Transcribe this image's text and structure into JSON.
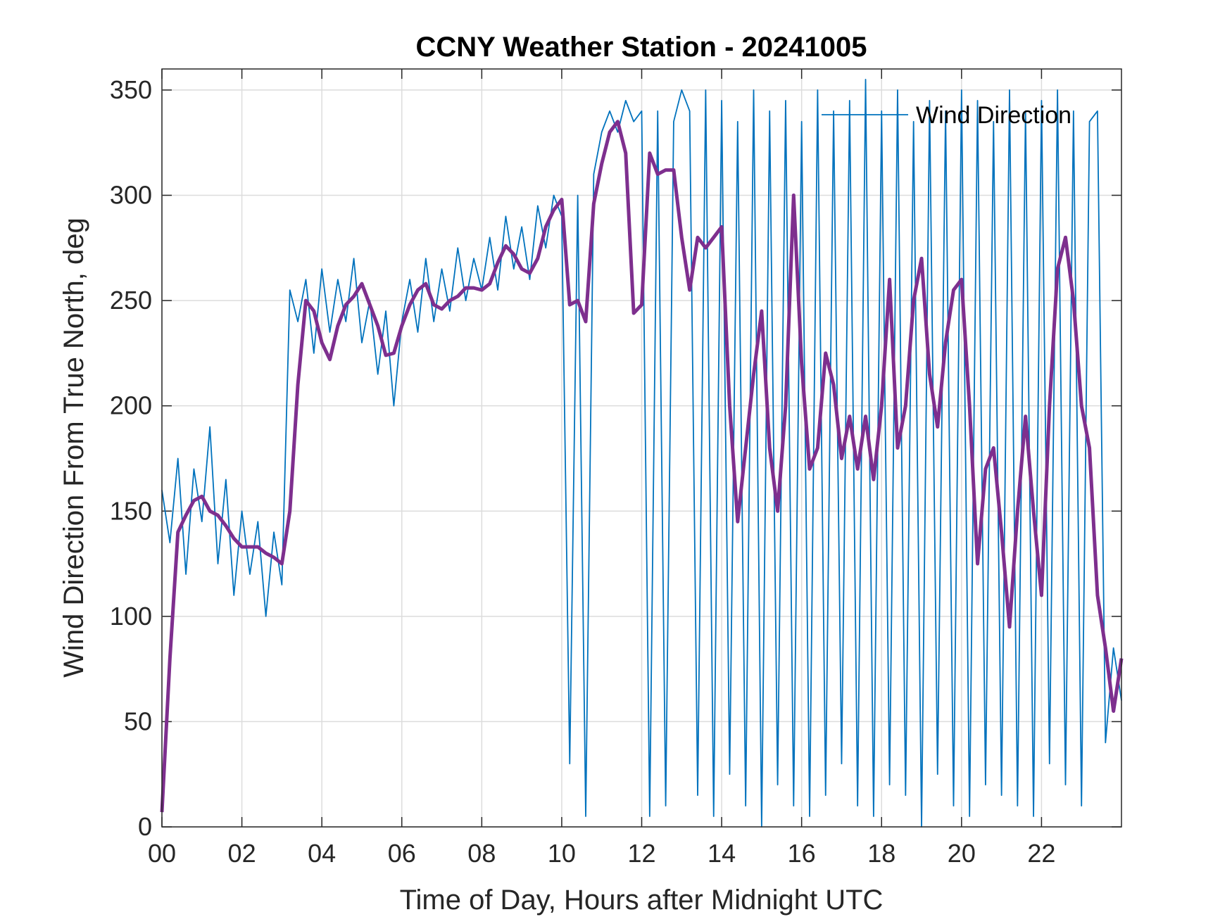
{
  "chart_data": {
    "type": "line",
    "title": "CCNY Weather Station - 20241005",
    "xlabel": "Time of Day, Hours after Midnight UTC",
    "ylabel": "Wind Direction From True North, deg",
    "x": [
      0,
      0.2,
      0.4,
      0.6,
      0.8,
      1,
      1.2,
      1.4,
      1.6,
      1.8,
      2,
      2.2,
      2.4,
      2.6,
      2.8,
      3,
      3.2,
      3.4,
      3.6,
      3.8,
      4,
      4.2,
      4.4,
      4.6,
      4.8,
      5,
      5.2,
      5.4,
      5.6,
      5.8,
      6,
      6.2,
      6.4,
      6.6,
      6.8,
      7,
      7.2,
      7.4,
      7.6,
      7.8,
      8,
      8.2,
      8.4,
      8.6,
      8.8,
      9,
      9.2,
      9.4,
      9.6,
      9.8,
      10,
      10.2,
      10.4,
      10.6,
      10.8,
      11,
      11.2,
      11.4,
      11.6,
      11.8,
      12,
      12.2,
      12.4,
      12.6,
      12.8,
      13,
      13.2,
      13.4,
      13.6,
      13.8,
      14,
      14.2,
      14.4,
      14.6,
      14.8,
      15,
      15.2,
      15.4,
      15.6,
      15.8,
      16,
      16.2,
      16.4,
      16.6,
      16.8,
      17,
      17.2,
      17.4,
      17.6,
      17.8,
      18,
      18.2,
      18.4,
      18.6,
      18.8,
      19,
      19.2,
      19.4,
      19.6,
      19.8,
      20,
      20.2,
      20.4,
      20.6,
      20.8,
      21,
      21.2,
      21.4,
      21.6,
      21.8,
      22,
      22.2,
      22.4,
      22.6,
      22.8,
      23,
      23.2,
      23.4,
      23.6,
      23.8,
      24
    ],
    "series": [
      {
        "name": "Wind Direction",
        "color": "#0072BD",
        "values": [
          160,
          135,
          175,
          120,
          170,
          145,
          190,
          125,
          165,
          110,
          150,
          120,
          145,
          100,
          140,
          115,
          255,
          240,
          260,
          225,
          265,
          235,
          260,
          240,
          270,
          230,
          250,
          215,
          245,
          200,
          240,
          260,
          235,
          270,
          240,
          265,
          245,
          275,
          250,
          270,
          255,
          280,
          255,
          290,
          265,
          285,
          260,
          295,
          275,
          300,
          290,
          30,
          300,
          5,
          310,
          330,
          340,
          330,
          345,
          335,
          340,
          5,
          340,
          10,
          335,
          350,
          340,
          15,
          350,
          5,
          345,
          25,
          335,
          10,
          350,
          0,
          340,
          20,
          345,
          10,
          335,
          5,
          350,
          15,
          340,
          30,
          345,
          10,
          355,
          5,
          340,
          20,
          350,
          15,
          335,
          0,
          345,
          25,
          340,
          10,
          350,
          5,
          345,
          20,
          335,
          15,
          350,
          10,
          340,
          5,
          345,
          30,
          350,
          20,
          340,
          10,
          335,
          340,
          40,
          85,
          60
        ]
      },
      {
        "color": "#7E2F8E",
        "values": [
          7,
          80,
          140,
          148,
          155,
          157,
          150,
          148,
          143,
          137,
          133,
          133,
          133,
          130,
          128,
          125,
          150,
          210,
          250,
          245,
          230,
          222,
          238,
          248,
          252,
          258,
          248,
          238,
          224,
          225,
          238,
          248,
          255,
          258,
          248,
          246,
          250,
          252,
          256,
          256,
          255,
          258,
          268,
          276,
          272,
          265,
          263,
          270,
          285,
          293,
          298,
          248,
          250,
          240,
          296,
          315,
          330,
          335,
          320,
          244,
          248,
          320,
          310,
          312,
          312,
          280,
          255,
          280,
          275,
          280,
          285,
          200,
          145,
          180,
          215,
          245,
          180,
          150,
          200,
          300,
          220,
          170,
          180,
          225,
          210,
          175,
          195,
          170,
          195,
          165,
          200,
          260,
          180,
          200,
          250,
          270,
          215,
          190,
          230,
          255,
          260,
          200,
          125,
          170,
          180,
          140,
          95,
          150,
          195,
          150,
          110,
          200,
          265,
          280,
          250,
          200,
          180,
          110,
          85,
          55,
          80
        ]
      }
    ],
    "xlim": [
      0,
      24
    ],
    "xticks": [
      {
        "value": 0,
        "label": "00"
      },
      {
        "value": 2,
        "label": "02"
      },
      {
        "value": 4,
        "label": "04"
      },
      {
        "value": 6,
        "label": "06"
      },
      {
        "value": 8,
        "label": "08"
      },
      10,
      12,
      14,
      16,
      18,
      20,
      22
    ],
    "ylim": [
      0,
      360
    ],
    "yticks": [
      0,
      50,
      100,
      150,
      200,
      250,
      300,
      350
    ],
    "grid": true,
    "legend": "northeast"
  }
}
